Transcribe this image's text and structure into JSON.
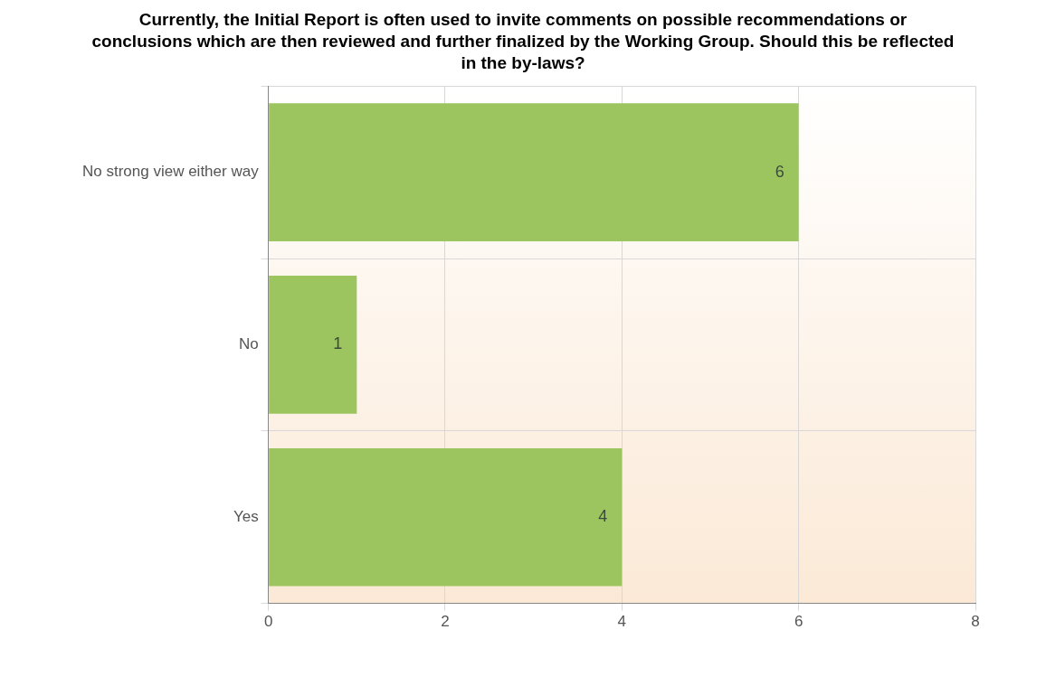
{
  "chart_data": {
    "type": "bar",
    "orientation": "horizontal",
    "title": "Currently, the Initial Report is often used to invite comments on possible recommendations or conclusions which are then reviewed and further finalized by the Working Group. Should this be reflected in the by-laws?",
    "categories": [
      "No strong view either way",
      "No",
      "Yes"
    ],
    "values": [
      6,
      1,
      4
    ],
    "color": "#9dc55f",
    "xlim": [
      0,
      8
    ],
    "xticks": [
      0,
      2,
      4,
      6,
      8
    ],
    "grid": true,
    "data_labels": true
  }
}
